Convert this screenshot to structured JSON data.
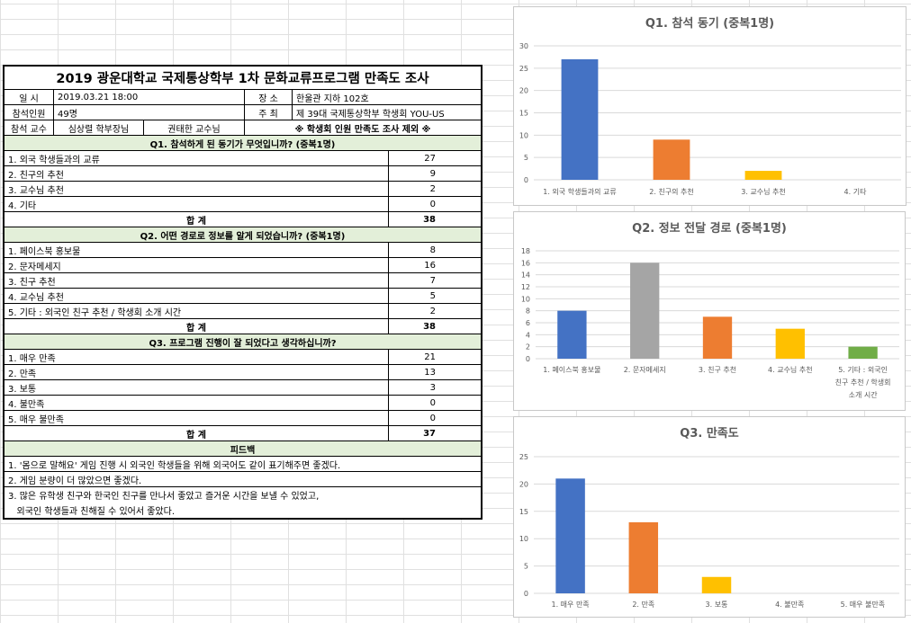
{
  "survey": {
    "title": "2019 광운대학교 국제통상학부 1차 문화교류프로그램 만족도 조사",
    "info": {
      "date_label": "일  시",
      "date_value": "2019.03.21 18:00",
      "place_label": "장  소",
      "place_value": "한울관 지하 102호",
      "attendees_label": "참석인원",
      "attendees_value": "49명",
      "host_label": "주  최",
      "host_value": "제 39대 국제통상학부 학생회 YOU-US",
      "professor_label": "참석 교수",
      "professor_1": "심상렬 학부장님",
      "professor_2": "권태한 교수님",
      "note": "※ 학생회 인원 만족도 조사 제외 ※"
    },
    "sections": [
      {
        "question": "Q1. 참석하게 된 동기가 무엇입니까? (중복1명)",
        "rows": [
          {
            "label": "1. 외국 학생들과의 교류",
            "value": "27"
          },
          {
            "label": "2. 친구의 추천",
            "value": "9"
          },
          {
            "label": "3. 교수님 추천",
            "value": "2"
          },
          {
            "label": "4. 기타",
            "value": "0"
          }
        ],
        "total_label": "합  계",
        "total_value": "38"
      },
      {
        "question": "Q2. 어떤 경로로 정보를 알게 되었습니까? (중복1명)",
        "rows": [
          {
            "label": "1. 페이스북 홍보물",
            "value": "8"
          },
          {
            "label": "2. 문자메세지",
            "value": "16"
          },
          {
            "label": "3. 친구 추천",
            "value": "7"
          },
          {
            "label": "4. 교수님 추천",
            "value": "5"
          },
          {
            "label": "5. 기타 : 외국인 친구 추천 / 학생회 소개 시간",
            "value": "2"
          }
        ],
        "total_label": "합  계",
        "total_value": "38"
      },
      {
        "question": "Q3. 프로그램 진행이 잘 되었다고 생각하십니까?",
        "rows": [
          {
            "label": "1. 매우 만족",
            "value": "21"
          },
          {
            "label": "2. 만족",
            "value": "13"
          },
          {
            "label": "3. 보통",
            "value": "3"
          },
          {
            "label": "4. 불만족",
            "value": "0"
          },
          {
            "label": "5. 매우 불만족",
            "value": "0"
          }
        ],
        "total_label": "합  계",
        "total_value": "37"
      }
    ],
    "feedback": {
      "heading": "피드백",
      "lines": [
        "1. '몸으로 말해요' 게임 진행 시 외국인 학생들을 위해 외국어도 같이 표기해주면 좋겠다.",
        "2. 게임 분량이 더 많았으면 좋겠다.",
        "3. 많은 유학생 친구와 한국인 친구를 만나서 좋았고 즐거운 시간을 보낼 수 있었고,",
        "   외국인 학생들과 친해질 수 있어서 좋았다."
      ]
    }
  },
  "chart_data": [
    {
      "type": "bar",
      "title": "Q1. 참석 동기 (중복1명)",
      "categories": [
        "1. 외국 학생들과의 교류",
        "2. 친구의 추천",
        "3. 교수님 추천",
        "4. 기타"
      ],
      "values": [
        27,
        9,
        2,
        0
      ],
      "colors": [
        "#4472c4",
        "#ed7d31",
        "#ffc000",
        "#a5a5a5"
      ],
      "ylim": [
        0,
        30
      ],
      "yticks": [
        0,
        5,
        10,
        15,
        20,
        25,
        30
      ],
      "grid": true
    },
    {
      "type": "bar",
      "title": "Q2. 정보 전달 경로 (중복1명)",
      "categories": [
        "1. 페이스북 홍보물",
        "2. 문자메세지",
        "3. 친구 추천",
        "4. 교수님 추천",
        "5. 기타 : 외국인 친구 추천 / 학생회 소개 시간"
      ],
      "category_lines": [
        [
          "1. 페이스북 홍보물"
        ],
        [
          "2. 문자메세지"
        ],
        [
          "3. 친구 추천"
        ],
        [
          "4. 교수님 추천"
        ],
        [
          "5. 기타 : 외국인",
          "친구 추천 / 학생회",
          "소개 시간"
        ]
      ],
      "values": [
        8,
        16,
        7,
        5,
        2
      ],
      "colors": [
        "#4472c4",
        "#a5a5a5",
        "#ed7d31",
        "#ffc000",
        "#70ad47"
      ],
      "ylim": [
        0,
        18
      ],
      "yticks": [
        0,
        2,
        4,
        6,
        8,
        10,
        12,
        14,
        16,
        18
      ],
      "grid": true
    },
    {
      "type": "bar",
      "title": "Q3. 만족도",
      "categories": [
        "1. 매우 만족",
        "2. 만족",
        "3. 보통",
        "4. 불만족",
        "5. 매우 불만족"
      ],
      "values": [
        21,
        13,
        3,
        0,
        0
      ],
      "colors": [
        "#4472c4",
        "#ed7d31",
        "#ffc000",
        "#a5a5a5",
        "#70ad47"
      ],
      "ylim": [
        0,
        25
      ],
      "yticks": [
        0,
        5,
        10,
        15,
        20,
        25
      ],
      "grid": true
    }
  ]
}
